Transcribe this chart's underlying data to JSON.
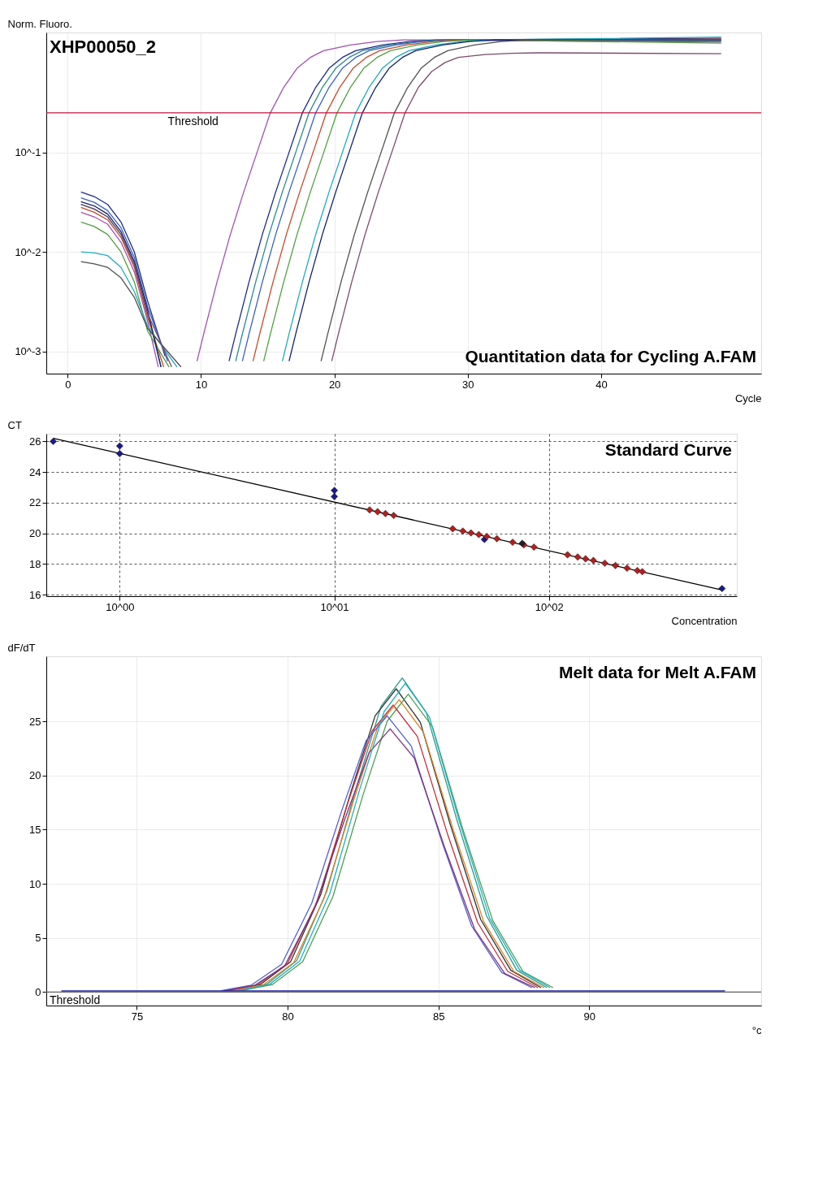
{
  "chart_data": [
    {
      "type": "line",
      "title": "Quantitation data for Cycling A.FAM",
      "annotations": [
        "XHP00050_2"
      ],
      "xlabel": "Cycle",
      "ylabel": "Norm. Fluoro.",
      "log": "y",
      "grid": true,
      "marker": "none",
      "line_style": "solid",
      "xlim": [
        -1.6,
        52
      ],
      "ylim": [
        0.0006,
        1.6
      ],
      "xticks": [
        0,
        10,
        20,
        30,
        40
      ],
      "yticks": [
        {
          "value": 0.001,
          "label": "10^-3"
        },
        {
          "value": 0.01,
          "label": "10^-2"
        },
        {
          "value": 0.1,
          "label": "10^-1"
        }
      ],
      "ref_lines": [
        {
          "axis": "y",
          "value": 0.25,
          "label": "Threshold",
          "color": "#c0143c"
        }
      ],
      "series": [
        {
          "color": "#a050b0",
          "x": [
            1,
            2,
            3,
            4,
            5,
            6,
            6.8,
            7.8,
            9.7,
            10.2,
            11.2,
            12.2,
            13.2,
            14.2,
            15.2,
            16.2,
            17.2,
            18.2,
            19.2,
            21.2,
            23.2,
            25.2,
            49
          ],
          "values": [
            0.025,
            0.0225,
            0.019,
            0.0125,
            0.0063,
            0.002,
            0.0007,
            null,
            0.0008,
            0.0015,
            0.005,
            0.015,
            0.04,
            0.1,
            0.25,
            0.45,
            0.7,
            0.9,
            1.05,
            1.2,
            1.3,
            1.35,
            1.28
          ]
        },
        {
          "color": "#1a2a8a",
          "x": [
            1,
            2,
            3,
            4,
            5,
            6,
            7.3,
            9,
            12.1,
            12.6,
            13.6,
            14.6,
            15.6,
            16.6,
            17.6,
            18.6,
            19.6,
            20.6,
            21.6,
            23.6,
            25.6,
            27.6,
            49
          ],
          "values": [
            0.04,
            0.036,
            0.03,
            0.02,
            0.01,
            0.0032,
            0.0009,
            null,
            0.0008,
            0.0015,
            0.005,
            0.015,
            0.04,
            0.1,
            0.25,
            0.45,
            0.7,
            0.9,
            1.05,
            1.2,
            1.3,
            1.35,
            1.4
          ]
        },
        {
          "color": "#2a8a8a",
          "x": [
            1,
            2,
            3,
            4,
            5,
            6,
            7.0,
            9,
            12.6,
            13.1,
            14.1,
            15.1,
            16.1,
            17.1,
            18.1,
            19.1,
            20.1,
            21.1,
            22.1,
            24.1,
            26.1,
            28.1,
            49
          ],
          "values": [
            0.03,
            0.027,
            0.0225,
            0.015,
            0.0075,
            0.0024,
            0.0007,
            null,
            0.0008,
            0.0015,
            0.005,
            0.015,
            0.04,
            0.1,
            0.25,
            0.45,
            0.7,
            0.9,
            1.05,
            1.2,
            1.3,
            1.35,
            1.34
          ]
        },
        {
          "color": "#3a60c0",
          "x": [
            1,
            2,
            3,
            4,
            5,
            6,
            7.5,
            9.5,
            13.1,
            13.6,
            14.6,
            15.6,
            16.6,
            17.6,
            18.6,
            19.6,
            20.6,
            21.6,
            22.6,
            24.6,
            26.6,
            28.6,
            49
          ],
          "values": [
            0.035,
            0.0315,
            0.026,
            0.0175,
            0.0088,
            0.0028,
            0.0008,
            null,
            0.0008,
            0.0015,
            0.005,
            0.015,
            0.04,
            0.1,
            0.25,
            0.45,
            0.7,
            0.9,
            1.05,
            1.2,
            1.3,
            1.35,
            1.31
          ]
        },
        {
          "color": "#c04a2a",
          "x": [
            1,
            2,
            3,
            4,
            5,
            6,
            7.2,
            10,
            13.9,
            14.4,
            15.4,
            16.4,
            17.4,
            18.4,
            19.4,
            20.4,
            21.4,
            22.4,
            23.4,
            25.4,
            27.4,
            29.4,
            49
          ],
          "values": [
            0.028,
            0.025,
            0.021,
            0.014,
            0.007,
            0.0022,
            0.0007,
            null,
            0.0008,
            0.0015,
            0.005,
            0.015,
            0.04,
            0.1,
            0.25,
            0.45,
            0.7,
            0.9,
            1.05,
            1.2,
            1.3,
            1.35,
            1.37
          ]
        },
        {
          "color": "#50a040",
          "x": [
            1,
            2,
            3,
            4,
            5,
            6,
            7.6,
            10,
            14.7,
            15.2,
            16.2,
            17.2,
            18.2,
            19.2,
            20.2,
            21.2,
            22.2,
            23.2,
            24.2,
            26.2,
            28.2,
            30.2,
            49
          ],
          "values": [
            0.02,
            0.018,
            0.015,
            0.01,
            0.005,
            0.0016,
            0.0007,
            null,
            0.0008,
            0.0015,
            0.005,
            0.015,
            0.04,
            0.1,
            0.25,
            0.45,
            0.7,
            0.9,
            1.05,
            1.2,
            1.3,
            1.35,
            1.25
          ]
        },
        {
          "color": "#20a8c0",
          "x": [
            1,
            2,
            3,
            4,
            5,
            6,
            8.2,
            11,
            16.1,
            16.6,
            17.6,
            18.6,
            19.6,
            20.6,
            21.6,
            22.6,
            23.6,
            24.6,
            25.6,
            27.6,
            29.6,
            31.6,
            49
          ],
          "values": [
            0.01,
            0.0098,
            0.0092,
            0.007,
            0.004,
            0.0018,
            0.0007,
            null,
            0.0008,
            0.0015,
            0.005,
            0.015,
            0.04,
            0.1,
            0.25,
            0.45,
            0.7,
            0.9,
            1.05,
            1.2,
            1.3,
            1.35,
            1.44
          ]
        },
        {
          "color": "#102070",
          "x": [
            1,
            2,
            3,
            4,
            5,
            6,
            7.0,
            11,
            16.6,
            17.1,
            18.1,
            19.1,
            20.1,
            21.1,
            22.1,
            23.1,
            24.1,
            25.1,
            26.1,
            28.1,
            30.1,
            32.1,
            49
          ],
          "values": [
            0.032,
            0.029,
            0.024,
            0.016,
            0.008,
            0.0026,
            0.0007,
            null,
            0.0008,
            0.0015,
            0.005,
            0.015,
            0.04,
            0.1,
            0.25,
            0.45,
            0.7,
            0.9,
            1.05,
            1.2,
            1.3,
            1.35,
            1.34
          ]
        },
        {
          "color": "#505050",
          "x": [
            1,
            2,
            3,
            4,
            5,
            6,
            8.5,
            12,
            19.0,
            19.5,
            20.5,
            21.5,
            22.5,
            23.5,
            24.5,
            25.5,
            26.5,
            27.5,
            28.5,
            30.5,
            32.5,
            34.5,
            49
          ],
          "values": [
            0.008,
            0.0076,
            0.007,
            0.0055,
            0.0035,
            0.0017,
            0.0007,
            null,
            0.0008,
            0.0015,
            0.005,
            0.015,
            0.04,
            0.1,
            0.25,
            0.45,
            0.7,
            0.9,
            1.05,
            1.2,
            1.3,
            1.35,
            1.34
          ]
        },
        {
          "color": "#7a4a6a",
          "x": [
            1,
            2,
            3,
            4,
            5,
            6,
            7.8,
            12,
            19.8,
            20.3,
            21.3,
            22.3,
            23.3,
            24.3,
            25.3,
            26.3,
            27.3,
            28.3,
            29.3,
            31.3,
            33.3,
            35.3,
            49
          ],
          "values": [
            0.03,
            0.027,
            0.0225,
            0.015,
            0.0075,
            0.0024,
            0.0007,
            null,
            0.0008,
            0.0015,
            0.005,
            0.015,
            0.04,
            0.1,
            0.25,
            0.45,
            0.65,
            0.8,
            0.9,
            0.96,
            0.99,
            1.0,
            0.98
          ]
        }
      ]
    },
    {
      "type": "scatter",
      "title": "Standard Curve",
      "xlabel": "Concentration",
      "ylabel": "CT",
      "log": "x",
      "grid": true,
      "marker": "diamond",
      "xlim": [
        0.455,
        750
      ],
      "ylim": [
        15.9,
        26.5
      ],
      "xticks": [
        {
          "value": 1,
          "label": "10^00"
        },
        {
          "value": 10,
          "label": "10^01"
        },
        {
          "value": 100,
          "label": "10^02"
        }
      ],
      "yticks": [
        16,
        18,
        20,
        22,
        24,
        26
      ],
      "series": [
        {
          "type": "line",
          "marker": "none",
          "line_style": "solid",
          "color": "#000000",
          "x": [
            0.49,
            640
          ],
          "values": [
            26.2,
            16.3
          ]
        },
        {
          "color": "#1a1a8a",
          "x": [
            0.49,
            1,
            1,
            10,
            10,
            50,
            640
          ],
          "values": [
            26.0,
            25.7,
            25.2,
            22.8,
            22.4,
            19.6,
            16.4
          ]
        },
        {
          "color": "#b02020",
          "x": [
            14.6,
            15.9,
            17.3,
            18.9,
            35.6,
            39.7,
            43.3,
            47.1,
            51.3,
            57.2,
            67.7,
            76.3,
            85.1,
            122,
            136,
            148,
            161,
            182,
            204,
            231,
            258,
            272
          ],
          "values": [
            21.53,
            21.41,
            21.29,
            21.17,
            20.3,
            20.15,
            20.03,
            19.92,
            19.8,
            19.65,
            19.42,
            19.25,
            19.1,
            18.6,
            18.46,
            18.34,
            18.23,
            18.05,
            17.9,
            17.73,
            17.57,
            17.5
          ]
        },
        {
          "color": "#202020",
          "x": [
            75
          ],
          "values": [
            19.35
          ]
        }
      ]
    },
    {
      "type": "line",
      "title": "Melt data for Melt A.FAM",
      "xlabel": "°c",
      "ylabel": "dF/dT",
      "grid": true,
      "marker": "none",
      "line_style": "solid",
      "xlim": [
        72,
        95.7
      ],
      "ylim": [
        -1.25,
        31
      ],
      "xticks": [
        75,
        80,
        85,
        90
      ],
      "yticks": [
        0,
        5,
        10,
        15,
        20,
        25
      ],
      "ref_lines": [
        {
          "axis": "y",
          "value": 0,
          "label": "Threshold",
          "color": "#606060"
        }
      ],
      "series": [
        {
          "color": "#2a9a8a",
          "x": [
            78.3,
            79.3,
            80.3,
            81.3,
            82.3,
            83.1,
            83.8,
            84.6,
            85.6,
            86.6,
            87.6,
            88.6
          ],
          "values": [
            0.15,
            0.7,
            2.9,
            9.3,
            19.1,
            26.4,
            29.0,
            25.8,
            16.0,
            7.0,
            2.0,
            0.4
          ]
        },
        {
          "color": "#303030",
          "x": [
            78.1,
            79.1,
            80.1,
            81.1,
            82.1,
            82.9,
            83.6,
            84.4,
            85.4,
            86.4,
            87.4,
            88.4
          ],
          "values": [
            0.14,
            0.7,
            2.8,
            9.0,
            18.5,
            25.5,
            28.0,
            24.9,
            15.4,
            6.7,
            2.0,
            0.4
          ]
        },
        {
          "color": "#4aa050",
          "x": [
            78.5,
            79.5,
            80.5,
            81.5,
            82.5,
            83.3,
            84.0,
            84.8,
            85.8,
            86.8,
            87.8,
            88.8
          ],
          "values": [
            0.14,
            0.7,
            2.8,
            8.8,
            18.2,
            25.0,
            27.5,
            24.5,
            15.1,
            6.6,
            1.9,
            0.4
          ]
        },
        {
          "color": "#c03040",
          "x": [
            78.0,
            79.0,
            80.0,
            81.0,
            82.0,
            82.8,
            83.5,
            84.3,
            85.3,
            86.3,
            87.3,
            88.3
          ],
          "values": [
            0.13,
            0.66,
            2.65,
            8.5,
            17.5,
            24.1,
            26.5,
            23.6,
            14.6,
            6.4,
            1.9,
            0.4
          ]
        },
        {
          "color": "#e08020",
          "x": [
            78.2,
            79.2,
            80.2,
            81.2,
            82.2,
            83.0,
            83.7,
            84.5,
            85.5,
            86.5,
            87.5,
            88.5
          ],
          "values": [
            0.14,
            0.68,
            2.7,
            8.6,
            17.8,
            24.6,
            27.0,
            24.0,
            14.9,
            6.5,
            1.9,
            0.4
          ]
        },
        {
          "color": "#5060d0",
          "x": [
            77.8,
            78.8,
            79.8,
            80.8,
            81.8,
            82.6,
            83.3,
            84.1,
            85.1,
            86.1,
            87.1,
            88.1
          ],
          "values": [
            0.13,
            0.64,
            2.55,
            8.2,
            16.8,
            23.2,
            25.5,
            22.7,
            14.0,
            6.1,
            1.8,
            0.4
          ]
        },
        {
          "color": "#803080",
          "x": [
            77.9,
            78.9,
            79.9,
            80.9,
            81.9,
            82.7,
            83.4,
            84.2,
            85.2,
            86.2,
            87.2,
            88.2
          ],
          "values": [
            0.12,
            0.61,
            2.4,
            7.8,
            16.0,
            22.1,
            24.3,
            21.6,
            13.4,
            5.8,
            1.7,
            0.4
          ]
        },
        {
          "color": "#20b0c0",
          "x": [
            78.4,
            79.4,
            80.4,
            81.4,
            82.4,
            83.2,
            83.9,
            84.7,
            85.7,
            86.7,
            87.7,
            88.7
          ],
          "values": [
            0.14,
            0.71,
            2.85,
            9.1,
            18.8,
            25.9,
            28.5,
            25.4,
            15.7,
            6.8,
            2.0,
            0.4
          ]
        },
        {
          "color": "#2020a0",
          "x": [
            72.5,
            94.5
          ],
          "values": [
            0.1,
            0.1
          ]
        }
      ]
    }
  ]
}
